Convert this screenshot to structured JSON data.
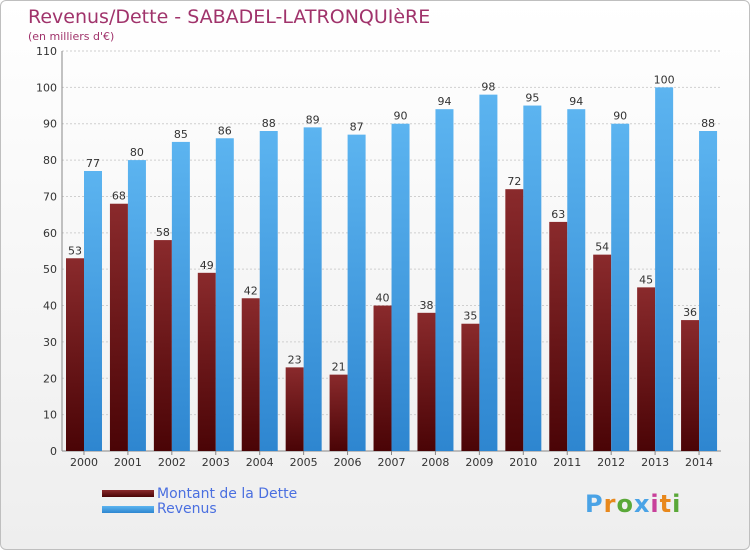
{
  "chart_data": {
    "type": "bar",
    "title": "Revenus/Dette - SABADEL-LATRONQUIèRE",
    "subtitle": "(en milliers d'€)",
    "categories": [
      "2000",
      "2001",
      "2002",
      "2003",
      "2004",
      "2005",
      "2006",
      "2007",
      "2008",
      "2009",
      "2010",
      "2011",
      "2012",
      "2013",
      "2014"
    ],
    "series": [
      {
        "name": "Montant de la Dette",
        "color": "#6b1012",
        "values": [
          53,
          68,
          58,
          49,
          42,
          23,
          21,
          40,
          38,
          35,
          72,
          63,
          54,
          45,
          36
        ]
      },
      {
        "name": "Revenus",
        "color": "#4aa3e6",
        "values": [
          77,
          80,
          85,
          86,
          88,
          89,
          87,
          90,
          94,
          98,
          95,
          94,
          90,
          100,
          88
        ]
      }
    ],
    "yticks": [
      0,
      10,
      20,
      30,
      40,
      50,
      60,
      70,
      80,
      90,
      100,
      110
    ],
    "ylim": [
      0,
      110
    ],
    "grid": true,
    "legend_position": "bottom-left"
  },
  "logo": {
    "text": "Proxiti",
    "colors": [
      "#4aa3e6",
      "#e8881c",
      "#5aa838",
      "#4aa3e6",
      "#c8409a",
      "#e8881c",
      "#5aa838"
    ]
  }
}
